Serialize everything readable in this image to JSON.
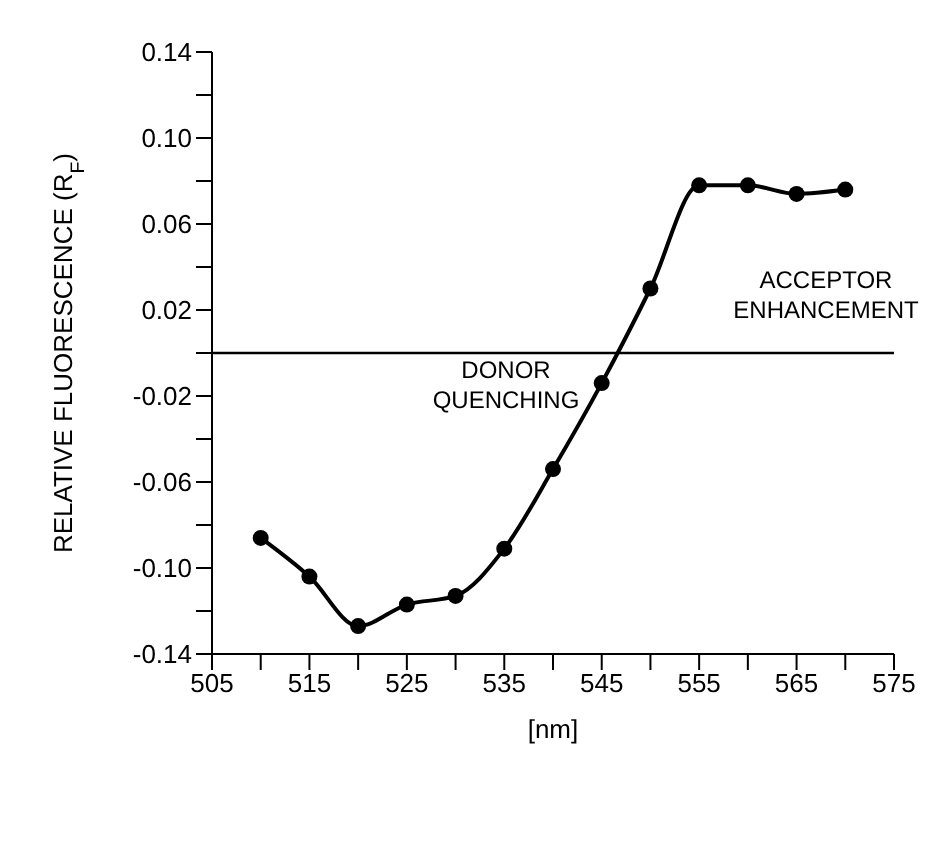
{
  "chart_data": {
    "type": "line",
    "xlabel": "[nm]",
    "ylabel": "RELATIVE FLUORESCENCE (R$_{F}$)",
    "x": [
      510,
      515,
      520,
      525,
      530,
      535,
      540,
      545,
      550,
      555,
      560,
      565,
      570
    ],
    "series": [
      {
        "color": "#000000",
        "values": [
          -0.086,
          -0.104,
          -0.127,
          -0.117,
          -0.113,
          -0.091,
          -0.054,
          -0.014,
          0.03,
          0.078,
          0.078,
          0.074,
          0.076
        ]
      }
    ],
    "xlim": [
      505,
      575
    ],
    "xticks": [
      505,
      {
        "value": 510,
        "label": null
      },
      515,
      {
        "value": 520,
        "label": null
      },
      525,
      {
        "value": 530,
        "label": null
      },
      535,
      {
        "value": 540,
        "label": null
      },
      545,
      {
        "value": 550,
        "label": null
      },
      555,
      {
        "value": 560,
        "label": null
      },
      565,
      {
        "value": 570,
        "label": null
      },
      575
    ],
    "ylim": [
      -0.14,
      0.14
    ],
    "yticks": [
      -0.14,
      {
        "value": -0.12,
        "label": null
      },
      {
        "value": -0.1,
        "label": "-0.10"
      },
      {
        "value": -0.08,
        "label": null
      },
      -0.06,
      {
        "value": -0.04,
        "label": null
      },
      -0.02,
      {
        "value": 0,
        "label": null
      },
      0.02,
      {
        "value": 0.04,
        "label": null
      },
      0.06,
      {
        "value": 0.08,
        "label": null
      },
      {
        "value": 0.1,
        "label": "0.10"
      },
      {
        "value": 0.12,
        "label": null
      },
      0.14
    ],
    "ref_lines": [
      {
        "axis": "y",
        "value": 0,
        "color": "#000000"
      }
    ],
    "annotations": [
      "DONOR QUENCHING",
      "ACCEPTOR ENHANCEMENT"
    ],
    "marker": "circle",
    "line_style": "solid",
    "grid": false
  }
}
